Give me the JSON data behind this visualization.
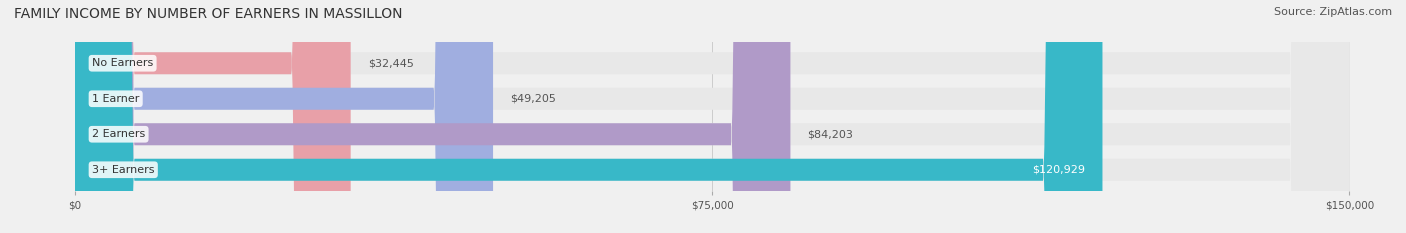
{
  "title": "FAMILY INCOME BY NUMBER OF EARNERS IN MASSILLON",
  "source": "Source: ZipAtlas.com",
  "categories": [
    "No Earners",
    "1 Earner",
    "2 Earners",
    "3+ Earners"
  ],
  "values": [
    32445,
    49205,
    84203,
    120929
  ],
  "bar_colors": [
    "#e8a0a8",
    "#a0aee0",
    "#b09ac8",
    "#38b8c8"
  ],
  "label_colors": [
    "#333333",
    "#333333",
    "#333333",
    "#ffffff"
  ],
  "xlim": [
    0,
    150000
  ],
  "xticks": [
    0,
    75000,
    150000
  ],
  "xtick_labels": [
    "$0",
    "$75,000",
    "$150,000"
  ],
  "background_color": "#f0f0f0",
  "bar_background_color": "#e8e8e8",
  "title_fontsize": 10,
  "source_fontsize": 8,
  "bar_height": 0.62,
  "label_fontsize": 8
}
